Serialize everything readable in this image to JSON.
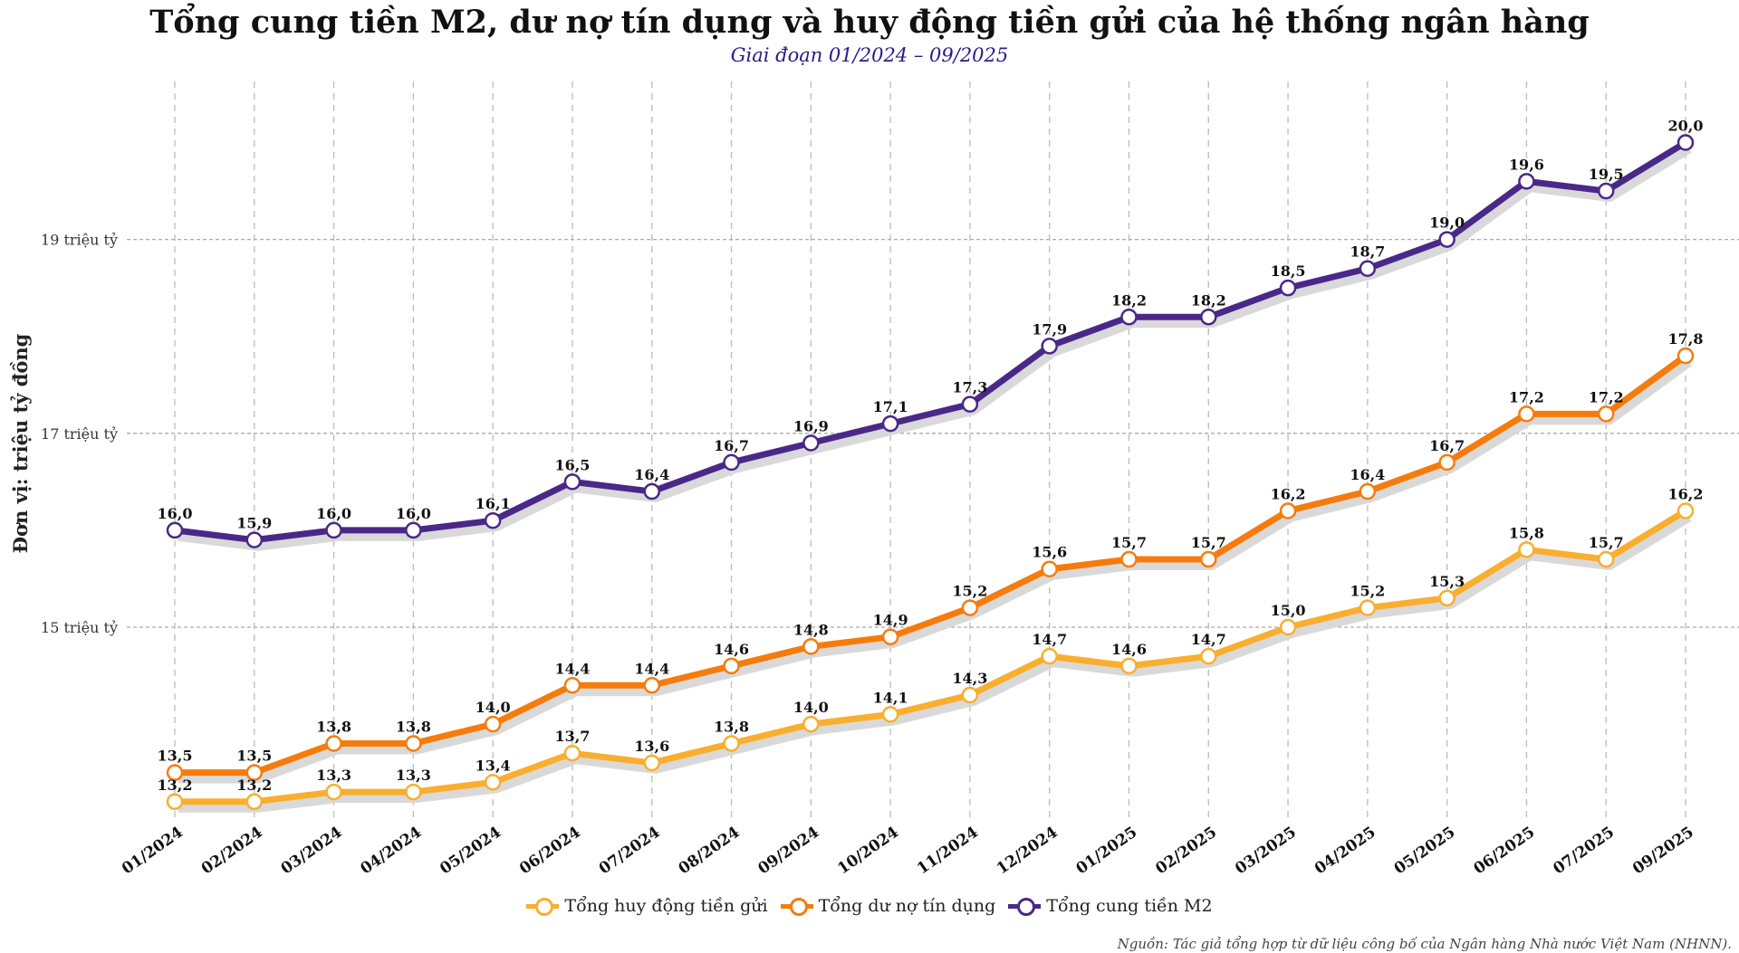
{
  "title": "Tổng cung tiền M2, dư nợ tín dụng và huy động tiền gửi của hệ thống ngân hàng",
  "subtitle": "Giai đoạn 01/2024 – 09/2025",
  "source": "Nguồn: Tác giả tổng hợp từ dữ liệu công bố của Ngân hàng Nhà nước Việt Nam (NHNN).",
  "chart_data": {
    "type": "line",
    "title": "Tổng cung tiền M2, dư nợ tín dụng và huy động tiền gửi của hệ thống ngân hàng",
    "subtitle": "Giai đoạn 01/2024 – 09/2025",
    "ylabel": "Đơn vị: triệu tỷ đồng",
    "xlabel": "",
    "ylim": [
      12.9,
      20.8
    ],
    "yticks": [
      15,
      17,
      19
    ],
    "ytick_labels": [
      "15 triệu tỷ",
      "17 triệu tỷ",
      "19 triệu tỷ"
    ],
    "grid": true,
    "legend_position": "bottom",
    "categories": [
      "01/2024",
      "02/2024",
      "03/2024",
      "04/2024",
      "05/2024",
      "06/2024",
      "07/2024",
      "08/2024",
      "09/2024",
      "10/2024",
      "11/2024",
      "12/2024",
      "01/2025",
      "02/2025",
      "03/2025",
      "04/2025",
      "05/2025",
      "06/2025",
      "07/2025",
      "09/2025"
    ],
    "series": [
      {
        "name": "Tổng huy động tiền gửi",
        "color": "#F9AE2E",
        "values": [
          13.2,
          13.2,
          13.3,
          13.3,
          13.4,
          13.7,
          13.6,
          13.8,
          14.0,
          14.1,
          14.3,
          14.7,
          14.6,
          14.7,
          15.0,
          15.2,
          15.3,
          15.8,
          15.7,
          16.2
        ]
      },
      {
        "name": "Tổng dư nợ tín dụng",
        "color": "#F57C0C",
        "values": [
          13.5,
          13.5,
          13.8,
          13.8,
          14.0,
          14.4,
          14.4,
          14.6,
          14.8,
          14.9,
          15.2,
          15.6,
          15.7,
          15.7,
          16.2,
          16.4,
          16.7,
          17.2,
          17.2,
          17.8
        ]
      },
      {
        "name": "Tổng cung tiền M2",
        "color": "#4A2888",
        "values": [
          16.0,
          15.9,
          16.0,
          16.0,
          16.1,
          16.5,
          16.4,
          16.7,
          16.9,
          17.1,
          17.3,
          17.9,
          18.2,
          18.2,
          18.5,
          18.7,
          19.0,
          19.6,
          19.5,
          20.0
        ]
      }
    ]
  }
}
